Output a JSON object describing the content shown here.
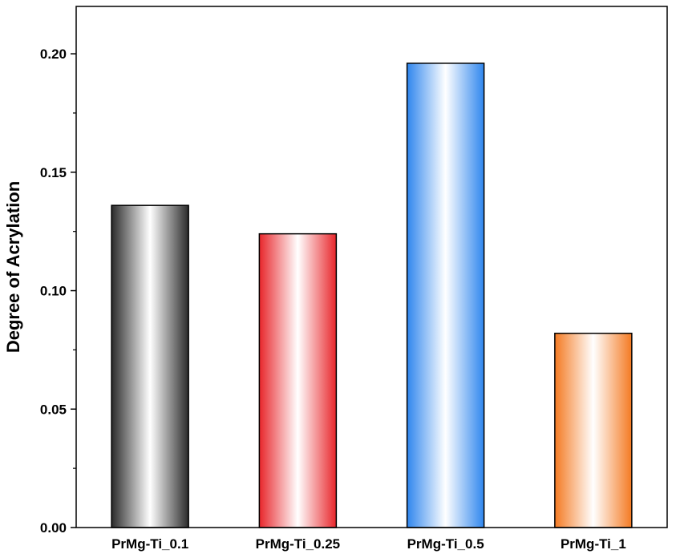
{
  "chart_data": {
    "type": "bar",
    "title": "",
    "xlabel": "",
    "ylabel": "Degree of Acrylation",
    "categories": [
      "PrMg-Ti_0.1",
      "PrMg-Ti_0.25",
      "PrMg-Ti_0.5",
      "PrMg-Ti_1"
    ],
    "values": [
      0.136,
      0.124,
      0.196,
      0.082
    ],
    "ylim": [
      0.0,
      0.22
    ],
    "yticks": [
      0.0,
      0.05,
      0.1,
      0.15,
      0.2
    ],
    "ytick_labels": [
      "0.00",
      "0.05",
      "0.10",
      "0.15",
      "0.20"
    ],
    "grid": false,
    "bar_colors": [
      "#2b2b2b",
      "#e8262b",
      "#2f86ee",
      "#f47a22"
    ],
    "bar_fill_style": "horizontal gradient: color at edges, white at center"
  }
}
